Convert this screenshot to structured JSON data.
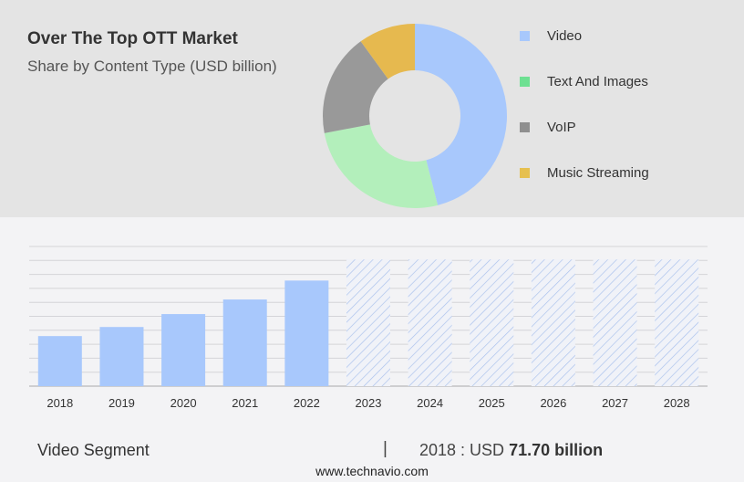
{
  "header": {
    "title": "Over The Top OTT Market",
    "subtitle": "Share by Content Type (USD billion)"
  },
  "chart_data": [
    {
      "type": "pie",
      "donut": true,
      "categories": [
        "Video",
        "Text And Images",
        "VoIP",
        "Music Streaming"
      ],
      "values": [
        46,
        26,
        18,
        10
      ],
      "colors": [
        "#a8c8fc",
        "#b3efbb",
        "#999999",
        "#e6b94f"
      ],
      "legend_colors": [
        "#a8c8fc",
        "#6ee092",
        "#8f8f8f",
        "#e6c04f"
      ],
      "legend_position": "right"
    },
    {
      "type": "bar",
      "categories": [
        "2018",
        "2019",
        "2020",
        "2021",
        "2022",
        "2023",
        "2024",
        "2025",
        "2026",
        "2027",
        "2028"
      ],
      "values": [
        71.7,
        84.7,
        103.2,
        124.1,
        151.2,
        181.4,
        181.4,
        181.4,
        181.4,
        181.4,
        181.4
      ],
      "forecast": [
        false,
        false,
        false,
        false,
        false,
        true,
        true,
        true,
        true,
        true,
        true
      ],
      "ylim": [
        0,
        200
      ],
      "grid": true,
      "color": "#a8c8fc"
    }
  ],
  "footer": {
    "segment": "Video Segment",
    "separator": "|",
    "year_label": "2018 : USD",
    "value": "71.70 billion",
    "site": "www.technavio.com"
  }
}
